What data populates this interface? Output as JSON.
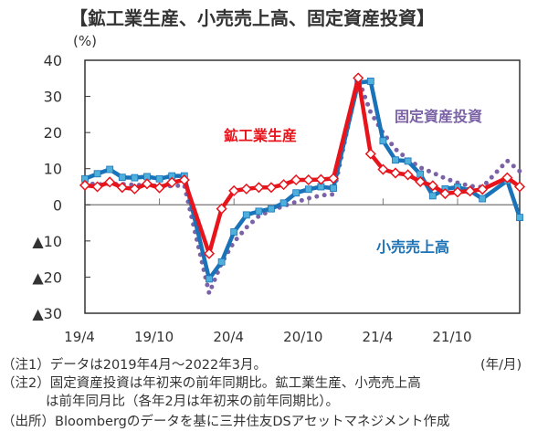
{
  "title": "【鉱工業生産、小売売上高、固定資産投資】",
  "notes": {
    "note1": "（注1）データは2019年4月～2022年3月。",
    "note2a": "（注2）固定資産投資は年初来の前年同期比。鉱工業生産、小売売上高",
    "note2b": "は前年同月比（各年2月は年初来の前年同期比）。",
    "source": "（出所）Bloombergのデータを基に三井住友DSアセットマネジメント作成"
  },
  "chart_data": {
    "type": "line",
    "title": "【鉱工業生産、小売売上高、固定資産投資】",
    "ylabel": "(%)",
    "xlabel": "(年/月)",
    "ylim": [
      -30,
      40
    ],
    "yticks": [
      40,
      30,
      20,
      10,
      0,
      -10,
      -20,
      -30
    ],
    "ytick_labels": [
      "40",
      "30",
      "20",
      "10",
      "0",
      "▲10",
      "▲20",
      "▲30"
    ],
    "xtick_labels": [
      "19/4",
      "19/10",
      "20/4",
      "20/10",
      "21/4",
      "21/10"
    ],
    "xtick_index": [
      0,
      6,
      12,
      18,
      24,
      30
    ],
    "months": [
      "19/4",
      "19/5",
      "19/6",
      "19/7",
      "19/8",
      "19/9",
      "19/10",
      "19/11",
      "19/12",
      "20/1",
      "20/2",
      "20/3",
      "20/4",
      "20/5",
      "20/6",
      "20/7",
      "20/8",
      "20/9",
      "20/10",
      "20/11",
      "20/12",
      "21/1",
      "21/2",
      "21/3",
      "21/4",
      "21/5",
      "21/6",
      "21/7",
      "21/8",
      "21/9",
      "21/10",
      "21/11",
      "21/12",
      "22/1",
      "22/2",
      "22/3"
    ],
    "grid": false,
    "series": [
      {
        "name": "固定資産投資",
        "color": "#7b62a6",
        "style": "dotted",
        "values": [
          6.1,
          5.6,
          5.8,
          5.7,
          5.5,
          5.4,
          5.2,
          5.2,
          5.4,
          null,
          -24.5,
          -16.1,
          -10.3,
          -6.3,
          -3.1,
          -1.6,
          -0.3,
          0.8,
          1.8,
          2.6,
          2.9,
          null,
          35.0,
          25.6,
          19.9,
          15.4,
          12.6,
          10.3,
          8.9,
          7.3,
          6.1,
          5.2,
          4.9,
          null,
          12.2,
          9.3
        ]
      },
      {
        "name": "小売売上高",
        "color": "#1a72b8",
        "marker_color": "#4fb0dc",
        "style": "solid-square",
        "values": [
          7.2,
          8.6,
          9.8,
          7.6,
          7.5,
          7.8,
          7.2,
          8.0,
          8.0,
          null,
          -20.5,
          -15.8,
          -7.5,
          -2.8,
          -1.8,
          -1.1,
          0.5,
          3.3,
          4.3,
          5.0,
          4.6,
          null,
          33.8,
          34.2,
          17.7,
          12.4,
          12.1,
          8.5,
          2.5,
          4.4,
          4.9,
          3.9,
          1.7,
          null,
          6.7,
          -3.5
        ]
      },
      {
        "name": "鉱工業生産",
        "color": "#e8141c",
        "style": "solid-diamond",
        "values": [
          5.4,
          5.0,
          6.3,
          4.8,
          4.4,
          5.8,
          4.7,
          6.2,
          6.9,
          null,
          -13.5,
          -1.1,
          3.9,
          4.4,
          4.8,
          4.8,
          5.6,
          6.9,
          6.9,
          7.0,
          7.3,
          null,
          35.1,
          14.1,
          9.8,
          8.8,
          8.3,
          6.4,
          5.3,
          3.1,
          3.5,
          3.8,
          4.3,
          null,
          7.5,
          5.0
        ]
      }
    ]
  }
}
